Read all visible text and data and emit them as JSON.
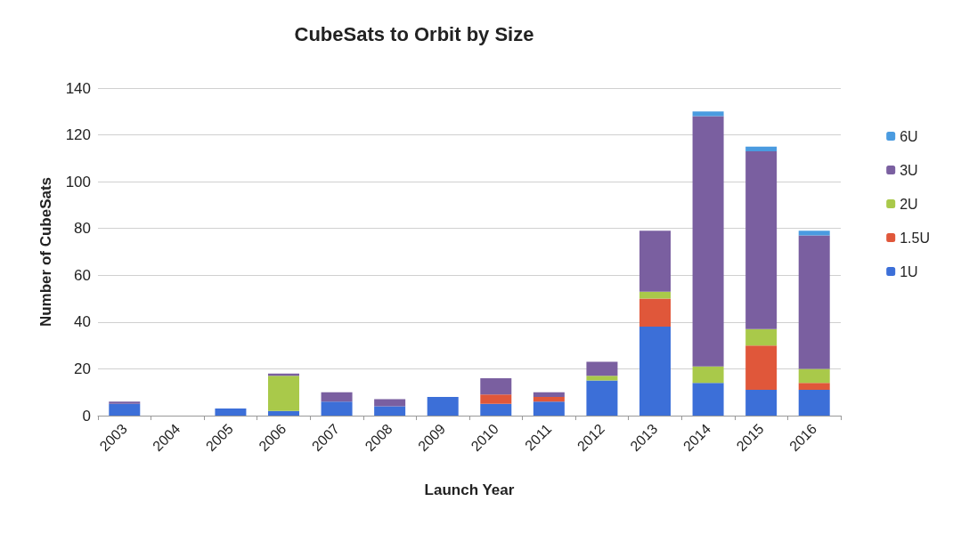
{
  "chart_data": {
    "type": "bar",
    "title": "CubeSats to Orbit by Size",
    "xlabel": "Launch Year",
    "ylabel": "Number of CubeSats",
    "categories": [
      "2003",
      "2004",
      "2005",
      "2006",
      "2007",
      "2008",
      "2009",
      "2010",
      "2011",
      "2012",
      "2013",
      "2014",
      "2015",
      "2016"
    ],
    "stacked": true,
    "ylim": [
      0,
      140
    ],
    "yticks": [
      0,
      20,
      40,
      60,
      80,
      100,
      120,
      140
    ],
    "grid": "y",
    "legend": "right",
    "series": [
      {
        "name": "1U",
        "color": "#3c6fd8",
        "values": [
          5,
          0,
          3,
          2,
          6,
          4,
          8,
          5,
          6,
          15,
          38,
          14,
          11,
          11
        ]
      },
      {
        "name": "1.5U",
        "color": "#e0573a",
        "values": [
          0,
          0,
          0,
          0,
          0,
          0,
          0,
          4,
          2,
          0,
          12,
          0,
          19,
          3
        ]
      },
      {
        "name": "2U",
        "color": "#a9c94a",
        "values": [
          0,
          0,
          0,
          15,
          0,
          0,
          0,
          0,
          0,
          2,
          3,
          7,
          7,
          6
        ]
      },
      {
        "name": "3U",
        "color": "#7a5fa0",
        "values": [
          1,
          0,
          0,
          1,
          4,
          3,
          0,
          7,
          2,
          6,
          26,
          107,
          76,
          57
        ]
      },
      {
        "name": "6U",
        "color": "#4a9be0",
        "values": [
          0,
          0,
          0,
          0,
          0,
          0,
          0,
          0,
          0,
          0,
          0,
          2,
          2,
          2
        ]
      }
    ]
  }
}
